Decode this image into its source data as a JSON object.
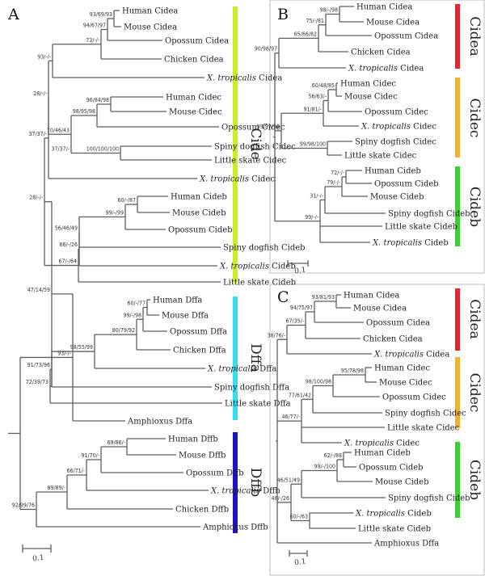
{
  "panels": {
    "A": {
      "label": "A",
      "scale_label": "0.1",
      "groups": [
        {
          "name": "Cide",
          "color": "#ccec2a"
        },
        {
          "name": "Dffa",
          "color": "#38ddee"
        },
        {
          "name": "Dffb",
          "color": "#1b16bf"
        }
      ],
      "taxa": [
        "Human Cidea",
        "Mouse Cidea",
        "Opossum Cidea",
        "Chicken Cidea",
        "X. tropicalis Cidea",
        "Human Cidec",
        "Mouse Cidec",
        "Opossum Cidec",
        "Spiny dogfish Cidec",
        "Little skate Cidec",
        "X. tropicalis Cidec",
        "Human Cideb",
        "Mouse Cideb",
        "Opossum Cideb",
        "Spiny dogfish Cideb",
        "X. tropicalis Cideb",
        "Little skate Cideb",
        "Human Dffa",
        "Mouse Dffa",
        "Opossum Dffa",
        "Chicken Dffa",
        "X. tropicalis Dffa",
        "Spiny dogfish Dffa",
        "Little skate Dffa",
        "Amphioxus Dffa",
        "Human Dffb",
        "Mouse Dffb",
        "Opossum Dffb",
        "X. tropicalis Dffb",
        "Chicken Dffb",
        "Amphioxus Dffb"
      ],
      "supports": [
        "93/69/93",
        "94/67/97",
        "73/-/-",
        "44/-/-",
        "28/-/-",
        "96/84/98",
        "98/95/98",
        "70/46/43",
        "100/100/100",
        "37/37/-",
        "93/-/-",
        "60/-/87",
        "99/-/99",
        "56/46/49",
        "66/-/26",
        "67/-/64",
        "47/14/59",
        "60/-/77",
        "99/-/98",
        "80/79/92",
        "98/55/99",
        "72/39/73",
        "91/73/96",
        "69/86/-",
        "91/70/-",
        "66/71/-",
        "89/89/-",
        "92/99/76"
      ]
    },
    "B": {
      "label": "B",
      "scale_label": "0.1",
      "groups": [
        {
          "name": "Cidea",
          "color": "#e5242a"
        },
        {
          "name": "Cidec",
          "color": "#f3b22c"
        },
        {
          "name": "Cideb",
          "color": "#35d62a"
        }
      ],
      "taxa": [
        "Human Cidea",
        "Mouse Cidea",
        "Opossum Cidea",
        "Chicken Cidea",
        "X. tropicalis Cidea",
        "Human Cidec",
        "Mouse Cidec",
        "Opossum Cidec",
        "X. tropicalis Cidec",
        "Spiny dogfish Cidec",
        "Little skate Cidec",
        "Human Cideb",
        "Opossum Cideb",
        "Mouse Cideb",
        "Spiny dogfish Cideb",
        "Little skate Cideb",
        "X. tropicalis Cideb"
      ],
      "supports": [
        "98/-/98",
        "75/-/81",
        "65/66/82",
        "90/98/97",
        "60/48/85",
        "56/63/-",
        "91/81/-",
        "99/97/99",
        "99/98/100",
        "72/-/-",
        "79/-/-",
        "31/-/-",
        "69/-/48",
        "99/-/-"
      ]
    },
    "C": {
      "label": "C",
      "scale_label": "0.1",
      "groups": [
        {
          "name": "Cidea",
          "color": "#e5242a"
        },
        {
          "name": "Cidec",
          "color": "#f3b22c"
        },
        {
          "name": "Cideb",
          "color": "#35d62a"
        }
      ],
      "taxa": [
        "Human Cidea",
        "Mouse Cidea",
        "Opossum Cidea",
        "Chicken Cidea",
        "X. tropicalis Cidea",
        "Human Cidec",
        "Mouse Cidec",
        "Opossum Cidec",
        "Spiny dogfish Cidec",
        "Little skate Cidec",
        "X. tropicalis Cidec",
        "Human Cideb",
        "Opossum Cideb",
        "Mouse Cideb",
        "Spiny dogfish Cideb",
        "X. tropicalis Cideb",
        "Little skate Cideb",
        "Amphioxus Dffa"
      ],
      "supports": [
        "93/81/93",
        "94/75/97",
        "67/35/-",
        "44/58/-",
        "38/76/-",
        "95/78/98",
        "98/100/98",
        "77/61/42",
        "99/100/100",
        "46/77/-",
        "62/-/88",
        "99/-/100",
        "46/51/49",
        "48/-/26",
        "60/-/63"
      ]
    }
  }
}
